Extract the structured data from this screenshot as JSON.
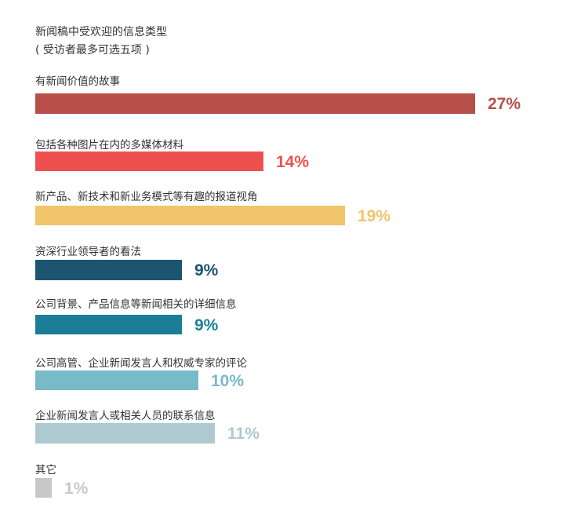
{
  "chart_data": {
    "type": "bar",
    "orientation": "horizontal",
    "title": "新闻稿中受欢迎的信息类型",
    "subtitle": "( 受访者最多可选五项 )",
    "categories": [
      "有新闻价值的故事",
      "包括各种图片在内的多媒体材料",
      "新产品、新技术和新业务模式等有趣的报道视角",
      "资深行业领导者的看法",
      "公司背景、产品信息等新闻相关的详细信息",
      "公司高管、企业新闻发言人和权威专家的评论",
      "企业新闻发言人或相关人员的联系信息",
      "其它"
    ],
    "values": [
      27,
      14,
      19,
      9,
      9,
      10,
      11,
      1
    ],
    "value_labels": [
      "27%",
      "14%",
      "19%",
      "9%",
      "9%",
      "10%",
      "11%",
      "1%"
    ],
    "colors": [
      "#b8504a",
      "#ee5050",
      "#f0c46a",
      "#1b5570",
      "#1b7d98",
      "#78bac8",
      "#aec9d0",
      "#c8c8c8"
    ],
    "unit": "%",
    "xlim": [
      0,
      27
    ],
    "grid": false,
    "legend": "none"
  }
}
